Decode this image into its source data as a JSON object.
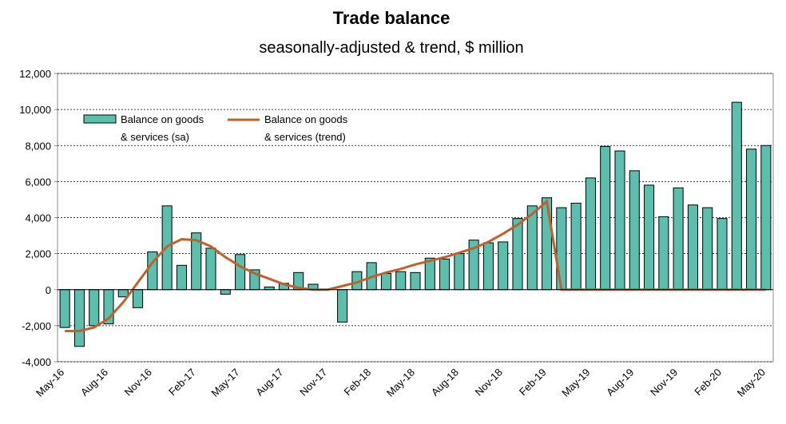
{
  "chart_data": {
    "type": "bar",
    "title": "Trade balance",
    "subtitle": "seasonally-adjusted & trend, $ million",
    "categories": [
      "May-16",
      null,
      null,
      "Aug-16",
      null,
      null,
      "Nov-16",
      null,
      null,
      "Feb-17",
      null,
      null,
      "May-17",
      null,
      null,
      "Aug-17",
      null,
      null,
      "Nov-17",
      null,
      null,
      "Feb-18",
      null,
      null,
      "May-18",
      null,
      null,
      "Aug-18",
      null,
      null,
      "Nov-18",
      null,
      null,
      "Feb-19",
      null,
      null,
      "May-19",
      null,
      null,
      "Aug-19",
      null,
      null,
      "Nov-19",
      null,
      null,
      "Feb-20",
      null,
      null,
      "May-20"
    ],
    "series": [
      {
        "name": "Balance on goods & services (sa)",
        "type": "bar",
        "color": "#5cbfae",
        "values": [
          -2100,
          -3150,
          -2000,
          -1900,
          -400,
          -1000,
          2100,
          4650,
          1350,
          3150,
          2300,
          -250,
          1950,
          1100,
          150,
          350,
          950,
          300,
          0,
          -1800,
          1000,
          1500,
          900,
          1000,
          950,
          1750,
          1700,
          2000,
          2750,
          2600,
          2650,
          3950,
          4650,
          5100,
          4550,
          4800,
          6200,
          7950,
          7700,
          6600,
          5800,
          4050,
          5650,
          4700,
          4550,
          3950,
          10400,
          7800,
          8000
        ]
      },
      {
        "name": "Balance on goods & services (trend)",
        "type": "line",
        "color": "#c0602a",
        "values": [
          -2300,
          -2300,
          -2100,
          -1600,
          -700,
          400,
          1500,
          2400,
          2800,
          2750,
          2400,
          1800,
          1300,
          900,
          600,
          300,
          100,
          0,
          0,
          200,
          400,
          700,
          950,
          1150,
          1400,
          1600,
          1800,
          2050,
          2300,
          2650,
          3100,
          3600,
          4200,
          4900,
          0,
          0,
          0,
          0,
          0,
          0,
          0,
          0,
          0,
          0,
          0,
          0,
          0,
          0,
          0
        ]
      }
    ],
    "ylim": [
      -4000,
      12000
    ],
    "yticks": [
      {
        "value": -4000,
        "label": "-4,000"
      },
      {
        "value": -2000,
        "label": "-2,000"
      },
      0,
      {
        "value": 2000,
        "label": "2,000"
      },
      {
        "value": 4000,
        "label": "4,000"
      },
      {
        "value": 6000,
        "label": "6,000"
      },
      {
        "value": 8000,
        "label": "8,000"
      },
      {
        "value": 10000,
        "label": "10,000"
      },
      {
        "value": 12000,
        "label": "12,000"
      }
    ],
    "grid": true,
    "legend": "upper left"
  }
}
